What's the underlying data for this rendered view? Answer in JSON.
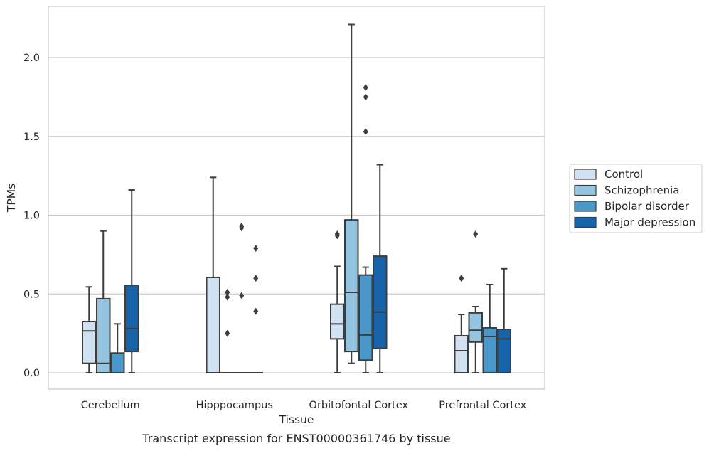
{
  "chart_data": {
    "type": "box",
    "caption": "Transcript expression for ENST00000361746 by tissue",
    "xlabel": "Tissue",
    "ylabel": "TPMs",
    "ylim": [
      -0.1,
      2.33
    ],
    "yticks": [
      0.0,
      0.5,
      1.0,
      1.5,
      2.0
    ],
    "ytick_labels": [
      "0.0",
      "0.5",
      "1.0",
      "1.5",
      "2.0"
    ],
    "grid": "horizontal",
    "legend_position": "right",
    "categories": [
      "Cerebellum",
      "Hipppocampus",
      "Orbitofontal Cortex",
      "Prefrontal Cortex"
    ],
    "series": [
      {
        "name": "Control",
        "color": "#d0e1f2",
        "boxes": [
          {
            "whislo": 0.0,
            "q1": 0.06,
            "med": 0.265,
            "q3": 0.325,
            "whishi": 0.545,
            "fliers": []
          },
          {
            "whislo": 0.0,
            "q1": 0.0,
            "med": 0.0,
            "q3": 0.605,
            "whishi": 1.24,
            "fliers": []
          },
          {
            "whislo": 0.0,
            "q1": 0.215,
            "med": 0.31,
            "q3": 0.435,
            "whishi": 0.675,
            "fliers": [
              0.87,
              0.88
            ]
          },
          {
            "whislo": 0.0,
            "q1": 0.0,
            "med": 0.14,
            "q3": 0.235,
            "whishi": 0.37,
            "fliers": [
              0.6
            ]
          }
        ]
      },
      {
        "name": "Schizophrenia",
        "color": "#94c4df",
        "boxes": [
          {
            "whislo": 0.0,
            "q1": 0.0,
            "med": 0.06,
            "q3": 0.47,
            "whishi": 0.9,
            "fliers": []
          },
          {
            "whislo": 0.0,
            "q1": 0.0,
            "med": 0.0,
            "q3": 0.0,
            "whishi": 0.0,
            "fliers": [
              0.25,
              0.48,
              0.51
            ]
          },
          {
            "whislo": 0.06,
            "q1": 0.135,
            "med": 0.51,
            "q3": 0.97,
            "whishi": 2.21,
            "fliers": []
          },
          {
            "whislo": 0.0,
            "q1": 0.195,
            "med": 0.27,
            "q3": 0.38,
            "whishi": 0.42,
            "fliers": [
              0.88
            ]
          }
        ]
      },
      {
        "name": "Bipolar disorder",
        "color": "#4a98c9",
        "boxes": [
          {
            "whislo": 0.0,
            "q1": 0.0,
            "med": 0.0,
            "q3": 0.125,
            "whishi": 0.31,
            "fliers": []
          },
          {
            "whislo": 0.0,
            "q1": 0.0,
            "med": 0.0,
            "q3": 0.0,
            "whishi": 0.0,
            "fliers": [
              0.49,
              0.92,
              0.93
            ]
          },
          {
            "whislo": 0.0,
            "q1": 0.08,
            "med": 0.24,
            "q3": 0.62,
            "whishi": 0.67,
            "fliers": [
              1.53,
              1.75,
              1.81
            ]
          },
          {
            "whislo": 0.0,
            "q1": 0.0,
            "med": 0.23,
            "q3": 0.285,
            "whishi": 0.56,
            "fliers": []
          }
        ]
      },
      {
        "name": "Major depression",
        "color": "#1764ab",
        "boxes": [
          {
            "whislo": 0.0,
            "q1": 0.135,
            "med": 0.28,
            "q3": 0.555,
            "whishi": 1.16,
            "fliers": []
          },
          {
            "whislo": 0.0,
            "q1": 0.0,
            "med": 0.0,
            "q3": 0.0,
            "whishi": 0.0,
            "fliers": [
              0.39,
              0.6,
              0.79
            ]
          },
          {
            "whislo": 0.0,
            "q1": 0.155,
            "med": 0.385,
            "q3": 0.74,
            "whishi": 1.32,
            "fliers": []
          },
          {
            "whislo": 0.0,
            "q1": 0.0,
            "med": 0.215,
            "q3": 0.275,
            "whishi": 0.66,
            "fliers": []
          }
        ]
      }
    ]
  }
}
